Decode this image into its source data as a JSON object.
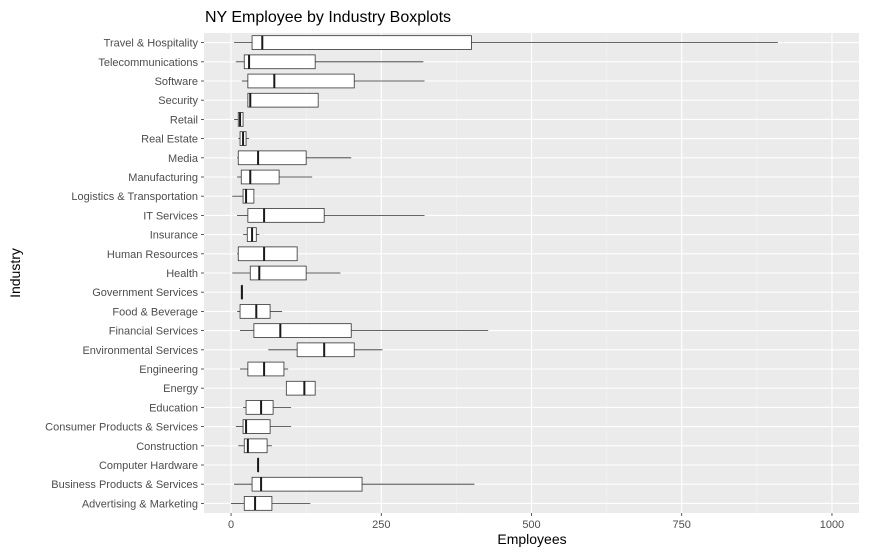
{
  "chart_data": {
    "type": "boxplot",
    "orientation": "horizontal",
    "title": "NY Employee by Industry Boxplots",
    "xlabel": "Employees",
    "ylabel": "Industry",
    "xlim": [
      -45,
      1045
    ],
    "xticks": [
      0,
      250,
      500,
      750,
      1000
    ],
    "xtick_labels": [
      "0",
      "250",
      "500",
      "750",
      "1000"
    ],
    "grid": true,
    "legend": "none",
    "colors": {
      "panel": "#ebebeb",
      "grid_major": "#ffffff",
      "grid_minor": "#f5f5f5",
      "box_fill": "#ffffff",
      "box_stroke": "#333333",
      "median": "#1a1a1a"
    },
    "categories": [
      "Travel & Hospitality",
      "Telecommunications",
      "Software",
      "Security",
      "Retail",
      "Real Estate",
      "Media",
      "Manufacturing",
      "Logistics & Transportation",
      "IT Services",
      "Insurance",
      "Human Resources",
      "Health",
      "Government Services",
      "Food & Beverage",
      "Financial Services",
      "Environmental Services",
      "Engineering",
      "Energy",
      "Education",
      "Consumer Products & Services",
      "Construction",
      "Computer Hardware",
      "Business Products & Services",
      "Advertising & Marketing"
    ],
    "boxes": [
      {
        "min": 5,
        "q1": 35,
        "median": 52,
        "q3": 400,
        "max": 910
      },
      {
        "min": 8,
        "q1": 22,
        "median": 30,
        "q3": 140,
        "max": 320
      },
      {
        "min": 18,
        "q1": 28,
        "median": 72,
        "q3": 205,
        "max": 322
      },
      {
        "min": 28,
        "q1": 28,
        "median": 32,
        "q3": 145,
        "max": 145
      },
      {
        "min": 5,
        "q1": 12,
        "median": 15,
        "q3": 20,
        "max": 20
      },
      {
        "min": 12,
        "q1": 15,
        "median": 20,
        "q3": 25,
        "max": 30
      },
      {
        "min": 10,
        "q1": 12,
        "median": 45,
        "q3": 125,
        "max": 200
      },
      {
        "min": 10,
        "q1": 17,
        "median": 32,
        "q3": 80,
        "max": 135
      },
      {
        "min": 2,
        "q1": 20,
        "median": 25,
        "q3": 38,
        "max": 38
      },
      {
        "min": 10,
        "q1": 28,
        "median": 55,
        "q3": 155,
        "max": 322
      },
      {
        "min": 20,
        "q1": 27,
        "median": 35,
        "q3": 42,
        "max": 47
      },
      {
        "min": 10,
        "q1": 12,
        "median": 55,
        "q3": 110,
        "max": 110
      },
      {
        "min": 2,
        "q1": 32,
        "median": 47,
        "q3": 125,
        "max": 182
      },
      {
        "min": 18,
        "q1": 18,
        "median": 18,
        "q3": 18,
        "max": 18
      },
      {
        "min": 10,
        "q1": 15,
        "median": 42,
        "q3": 65,
        "max": 85
      },
      {
        "min": 15,
        "q1": 38,
        "median": 82,
        "q3": 200,
        "max": 428
      },
      {
        "min": 62,
        "q1": 110,
        "median": 155,
        "q3": 205,
        "max": 252
      },
      {
        "min": 15,
        "q1": 28,
        "median": 55,
        "q3": 88,
        "max": 95
      },
      {
        "min": 92,
        "q1": 92,
        "median": 122,
        "q3": 140,
        "max": 140
      },
      {
        "min": 20,
        "q1": 25,
        "median": 50,
        "q3": 70,
        "max": 100
      },
      {
        "min": 8,
        "q1": 20,
        "median": 25,
        "q3": 65,
        "max": 100
      },
      {
        "min": 12,
        "q1": 22,
        "median": 28,
        "q3": 60,
        "max": 68
      },
      {
        "min": 45,
        "q1": 45,
        "median": 45,
        "q3": 45,
        "max": 45
      },
      {
        "min": 5,
        "q1": 35,
        "median": 50,
        "q3": 218,
        "max": 405
      },
      {
        "min": 0,
        "q1": 22,
        "median": 40,
        "q3": 68,
        "max": 132
      }
    ]
  }
}
